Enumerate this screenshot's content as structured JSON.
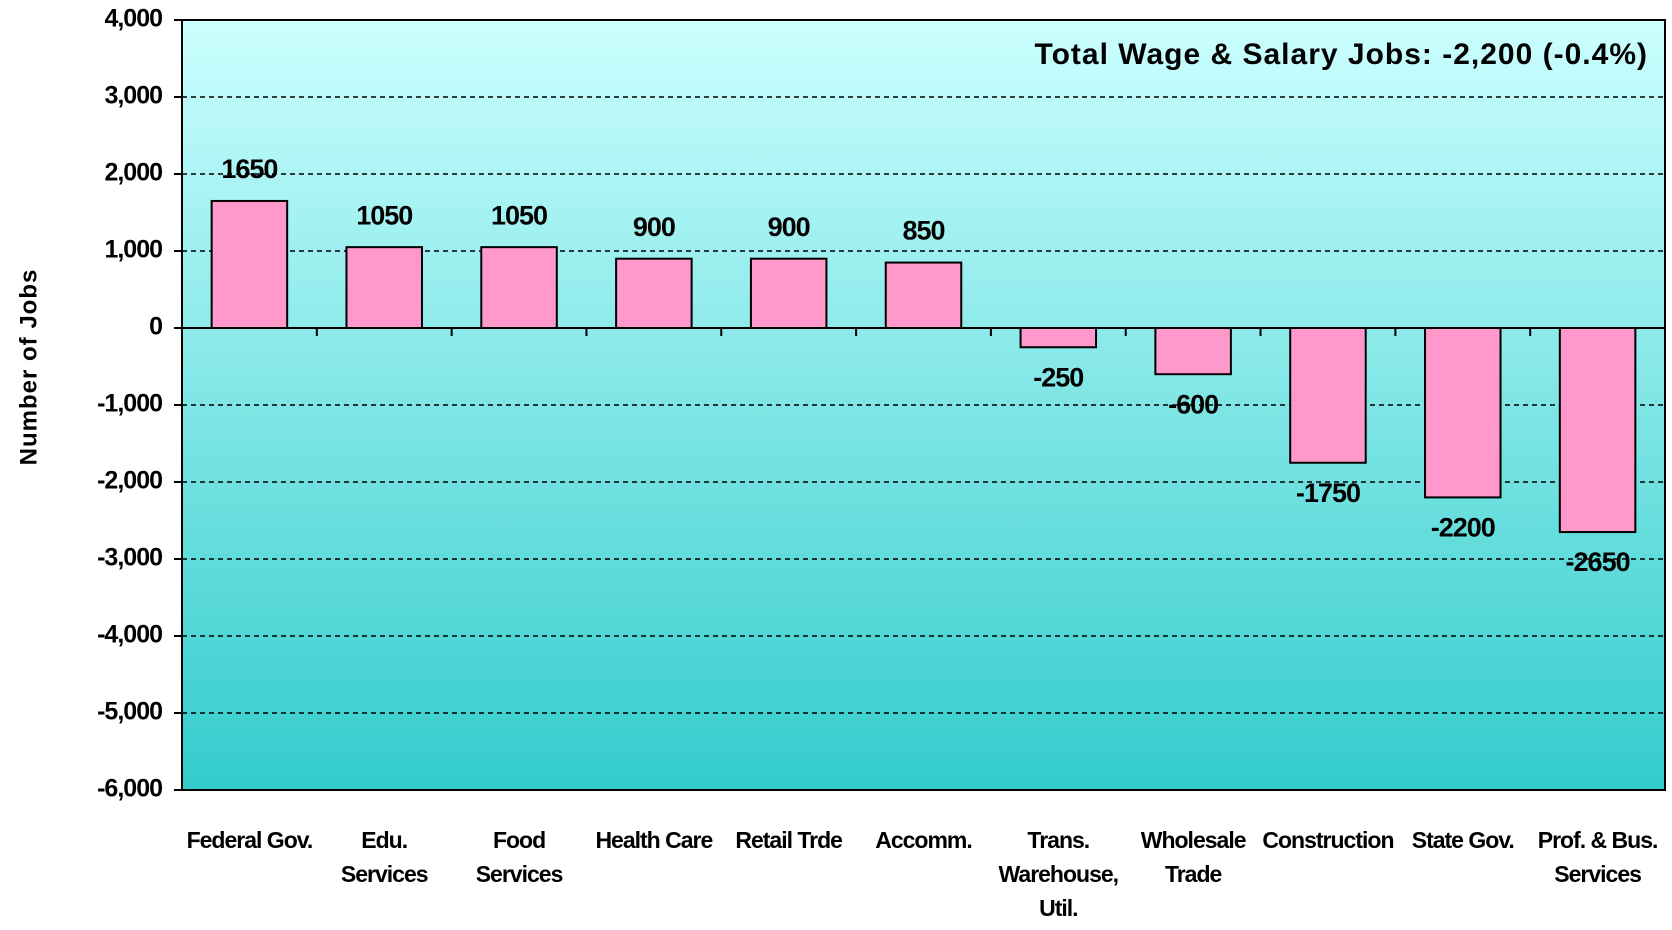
{
  "chart_data": {
    "type": "bar",
    "annotation": "Total Wage & Salary Jobs: -2,200 (-0.4%)",
    "y_label": "Number of Jobs",
    "categories": [
      [
        "Federal Gov."
      ],
      [
        "Edu.",
        "Services"
      ],
      [
        "Food",
        "Services"
      ],
      [
        "Health Care"
      ],
      [
        "Retail Trde"
      ],
      [
        "Accomm."
      ],
      [
        "Trans.",
        "Warehouse,",
        "Util."
      ],
      [
        "Wholesale",
        "Trade"
      ],
      [
        "Construction"
      ],
      [
        "State Gov."
      ],
      [
        "Prof. & Bus.",
        "Services"
      ]
    ],
    "values": [
      1650,
      1050,
      1050,
      900,
      900,
      850,
      -250,
      -600,
      -1750,
      -2200,
      -2650
    ],
    "color": "#ff99cc",
    "ylim": [
      -6000,
      4000
    ],
    "yticks": [
      {
        "value": -6000,
        "label": "-6,000"
      },
      {
        "value": -5000,
        "label": "-5,000"
      },
      {
        "value": -4000,
        "label": "-4,000"
      },
      {
        "value": -3000,
        "label": "-3,000"
      },
      {
        "value": -2000,
        "label": "-2,000"
      },
      {
        "value": -1000,
        "label": "-1,000"
      },
      0,
      {
        "value": 1000,
        "label": "1,000"
      },
      {
        "value": 2000,
        "label": "2,000"
      },
      {
        "value": 3000,
        "label": "3,000"
      },
      {
        "value": 4000,
        "label": "4,000"
      }
    ],
    "grid": true
  }
}
